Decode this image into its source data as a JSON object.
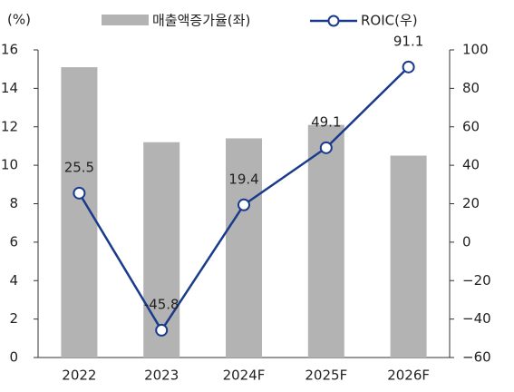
{
  "chart_data": {
    "type": "bar_line",
    "y_label": "(%)",
    "categories": [
      "2022",
      "2023",
      "2024F",
      "2025F",
      "2026F"
    ],
    "series": [
      {
        "name": "매출액증가율(좌)",
        "color": "#b3b3b3",
        "type": "bar",
        "values": [
          15.1,
          11.2,
          11.4,
          12.1,
          10.5
        ]
      },
      {
        "name": "ROIC(우)",
        "color": "#1a3a8c",
        "type": "line",
        "axis": "y2",
        "values": [
          25.5,
          -45.8,
          19.4,
          49.1,
          91.1
        ]
      }
    ],
    "ylim": [
      0,
      16
    ],
    "yticks": [
      0,
      2,
      4,
      6,
      8,
      10,
      12,
      14,
      16
    ],
    "y2lim": [
      -60,
      100
    ],
    "y2ticks": [
      {
        "value": -60,
        "label": "−60"
      },
      {
        "value": -40,
        "label": "−40"
      },
      {
        "value": -20,
        "label": "−20"
      },
      0,
      20,
      40,
      60,
      80,
      100
    ],
    "grid": false
  }
}
